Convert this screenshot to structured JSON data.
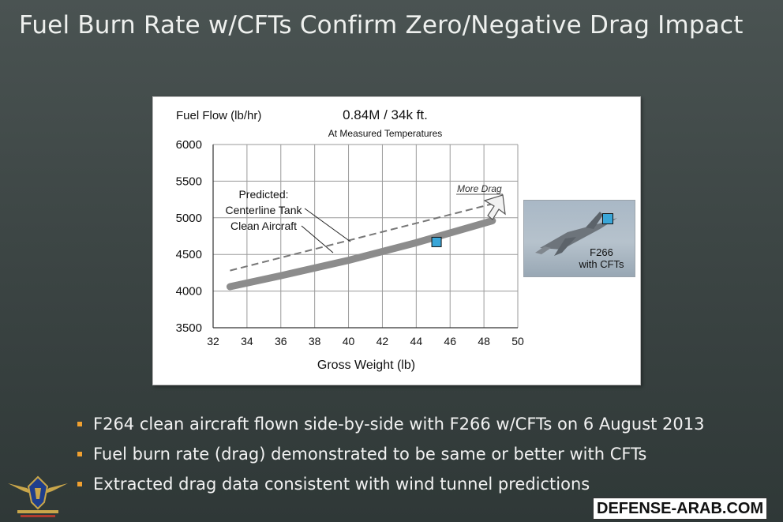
{
  "slide": {
    "title": "Fuel Burn Rate w/CFTs Confirm Zero/Negative Drag Impact",
    "bullets": [
      "F264 clean aircraft flown side-by-side with F266 w/CFTs on 6 August 2013",
      "Fuel burn rate (drag) demonstrated to be same or better with CFTs",
      "Extracted drag data consistent with wind tunnel predictions"
    ],
    "bullet_color": "#f0a030",
    "watermark": "DEFENSE-ARAB.COM",
    "logo_name": "arab-defense-forum-logo"
  },
  "inset": {
    "caption_line1": "F266",
    "caption_line2": "with CFTs",
    "marker_color": "#3aa6d8"
  },
  "chart_data": {
    "type": "line",
    "title": "0.84M / 34k ft.",
    "subtitle": "At Measured Temperatures",
    "ylabel": "Fuel Flow (lb/hr)",
    "xlabel": "Gross Weight (lb)",
    "xlim": [
      32,
      50
    ],
    "ylim": [
      3500,
      6000
    ],
    "x_ticks": [
      32,
      34,
      36,
      38,
      40,
      42,
      44,
      46,
      48,
      50
    ],
    "y_ticks": [
      3500,
      4000,
      4500,
      5000,
      5500,
      6000
    ],
    "grid": true,
    "series": [
      {
        "name": "Centerline Tank",
        "style": "dashed",
        "color": "#777777",
        "x": [
          33,
          48.5
        ],
        "y": [
          4280,
          5190
        ]
      },
      {
        "name": "Clean Aircraft",
        "style": "thick",
        "color": "#8c8c8c",
        "x": [
          33,
          36,
          40,
          44,
          48.5
        ],
        "y": [
          4060,
          4210,
          4420,
          4660,
          4960
        ]
      }
    ],
    "points": [
      {
        "name": "F266 with CFTs",
        "x": 45.2,
        "y": 4670,
        "color": "#3aa6d8"
      }
    ],
    "annotations": {
      "predicted": "Predicted:",
      "more_drag": "More Drag"
    }
  }
}
